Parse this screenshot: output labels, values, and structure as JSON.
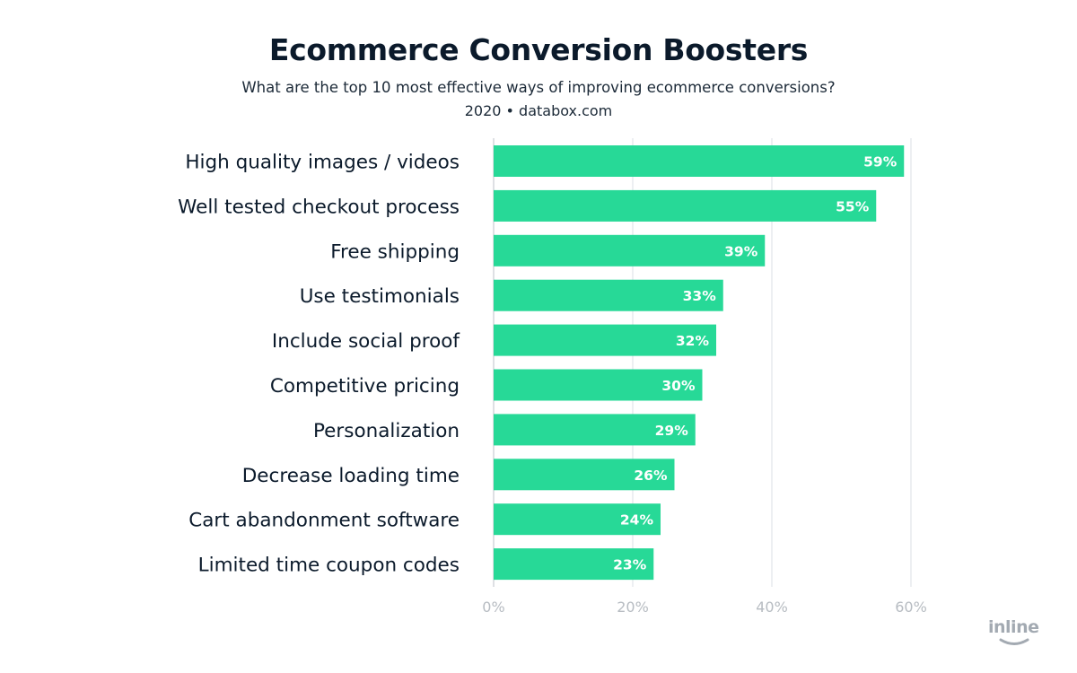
{
  "header": {
    "title": "Ecommerce Conversion Boosters",
    "subtitle": "What are the top 10 most effective ways of improving ecommerce conversions?",
    "source": "2020 • databox.com"
  },
  "brand": {
    "logo_text": "inline"
  },
  "colors": {
    "bar": "#27d997",
    "bar_label": "#ffffff",
    "category_label": "#0b1a2b",
    "grid": "#e1e4e8",
    "axis_tick": "#b7bcc2",
    "logo": "#a3aab2"
  },
  "chart_data": {
    "type": "bar",
    "orientation": "horizontal",
    "title": "Ecommerce Conversion Boosters",
    "subtitle": "What are the top 10 most effective ways of improving ecommerce conversions?",
    "categories": [
      "High quality images / videos",
      "Well tested checkout process",
      "Free shipping",
      "Use testimonials",
      "Include social proof",
      "Competitive pricing",
      "Personalization",
      "Decrease loading time",
      "Cart abandonment software",
      "Limited time coupon codes"
    ],
    "values": [
      59,
      55,
      39,
      33,
      32,
      30,
      29,
      26,
      24,
      23
    ],
    "value_labels": [
      "59%",
      "55%",
      "39%",
      "33%",
      "32%",
      "30%",
      "29%",
      "26%",
      "24%",
      "23%"
    ],
    "xlabel": "",
    "ylabel": "",
    "xlim": [
      0,
      60
    ],
    "x_ticks": [
      0,
      20,
      40,
      60
    ],
    "x_tick_labels": [
      "0%",
      "20%",
      "40%",
      "60%"
    ],
    "grid": true
  }
}
